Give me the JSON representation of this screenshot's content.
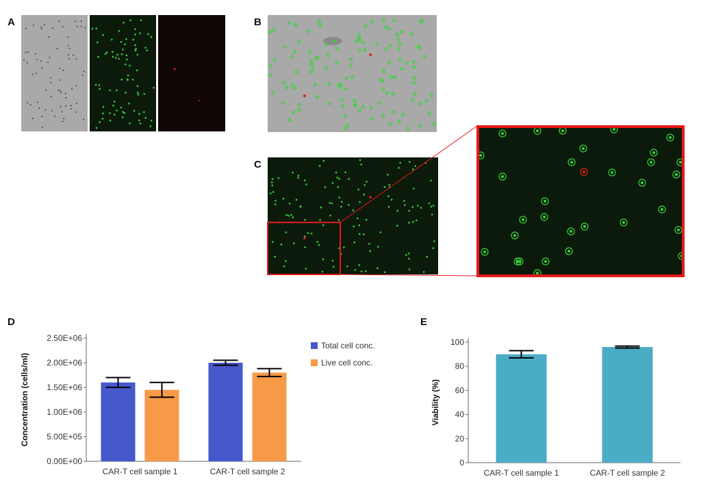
{
  "panels": {
    "a": "A",
    "b": "B",
    "c": "C",
    "d": "D",
    "e": "E"
  },
  "colors": {
    "brightfield": "#a9a9a9",
    "fluor_bg": "#0b1a0b",
    "red_bg": "#100606",
    "live_cell": "#39d439",
    "dead_cell": "#e02020",
    "zoom_box": "#e81818",
    "total_bar": "#4558cc",
    "live_bar": "#f79a48",
    "viability_bar": "#4bacc6"
  },
  "chart_data": [
    {
      "id": "D",
      "type": "bar",
      "categories": [
        "CAR-T cell sample 1",
        "CAR-T cell sample 2"
      ],
      "series": [
        {
          "name": "Total cell conc.",
          "values": [
            1600000,
            2000000
          ],
          "errors": [
            100000,
            50000
          ]
        },
        {
          "name": "Live cell conc.",
          "values": [
            1450000,
            1800000
          ],
          "errors": [
            150000,
            80000
          ]
        }
      ],
      "ylabel": "Concentration (cells/ml)",
      "ylim": [
        0,
        2500000
      ],
      "yticks": [
        {
          "value": 0,
          "label": "0.00E+00"
        },
        {
          "value": 500000,
          "label": "5.00E+05"
        },
        {
          "value": 1000000,
          "label": "1.00E+06"
        },
        {
          "value": 1500000,
          "label": "1.50E+06"
        },
        {
          "value": 2000000,
          "label": "2.00E+06"
        },
        {
          "value": 2500000,
          "label": "2.50E+06"
        }
      ],
      "legend_position": "right",
      "grid": false
    },
    {
      "id": "E",
      "type": "bar",
      "categories": [
        "CAR-T cell sample 1",
        "CAR-T cell sample 2"
      ],
      "series": [
        {
          "values": [
            90,
            96
          ],
          "errors": [
            3,
            0.8
          ]
        }
      ],
      "ylabel": "Viability (%)",
      "ylim": [
        0,
        100
      ],
      "yticks": [
        {
          "value": 0,
          "label": "0"
        },
        {
          "value": 20,
          "label": "20"
        },
        {
          "value": 40,
          "label": "40"
        },
        {
          "value": 60,
          "label": "60"
        },
        {
          "value": 80,
          "label": "80"
        },
        {
          "value": 100,
          "label": "100"
        }
      ],
      "grid": false
    }
  ]
}
